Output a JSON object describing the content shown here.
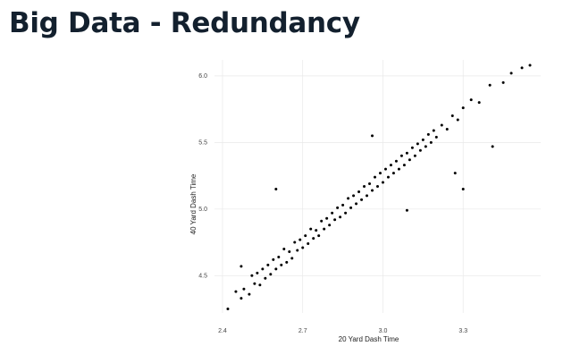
{
  "header": {
    "title": "Big Data - Redundancy"
  },
  "chart_data": {
    "type": "scatter",
    "x_label": "20 Yard Dash Time",
    "y_label": "40 Yard Dash Time",
    "color": "#000000",
    "grid": true,
    "xlim": [
      2.37,
      3.59
    ],
    "ylim": [
      4.22,
      6.12
    ],
    "xticks": [
      2.4,
      2.7,
      {
        "value": 3.0,
        "label": "3.0"
      },
      3.3
    ],
    "yticks": [
      4.5,
      {
        "value": 5.0,
        "label": "5.0"
      },
      5.5,
      {
        "value": 6.0,
        "label": "6.0"
      }
    ],
    "x": [
      2.42,
      2.45,
      2.47,
      2.48,
      2.5,
      2.51,
      2.52,
      2.53,
      2.54,
      2.55,
      2.56,
      2.57,
      2.58,
      2.59,
      2.6,
      2.61,
      2.62,
      2.63,
      2.64,
      2.65,
      2.66,
      2.67,
      2.68,
      2.69,
      2.7,
      2.71,
      2.72,
      2.73,
      2.74,
      2.75,
      2.76,
      2.77,
      2.78,
      2.79,
      2.8,
      2.81,
      2.82,
      2.83,
      2.84,
      2.85,
      2.86,
      2.87,
      2.88,
      2.89,
      2.9,
      2.91,
      2.92,
      2.93,
      2.94,
      2.95,
      2.96,
      2.97,
      2.98,
      2.99,
      3.0,
      3.01,
      3.02,
      3.03,
      3.04,
      3.05,
      3.06,
      3.07,
      3.08,
      3.09,
      3.1,
      3.11,
      3.12,
      3.13,
      3.14,
      3.15,
      3.16,
      3.17,
      3.18,
      3.19,
      3.2,
      3.22,
      3.24,
      3.26,
      3.28,
      3.3,
      3.33,
      3.36,
      3.4,
      3.45,
      3.48,
      3.52,
      3.55,
      2.6,
      3.3,
      3.27,
      3.41,
      2.96,
      3.09,
      2.47
    ],
    "y": [
      4.25,
      4.38,
      4.33,
      4.4,
      4.36,
      4.5,
      4.44,
      4.52,
      4.43,
      4.55,
      4.48,
      4.58,
      4.51,
      4.62,
      4.55,
      4.64,
      4.58,
      4.7,
      4.6,
      4.68,
      4.63,
      4.75,
      4.69,
      4.77,
      4.71,
      4.8,
      4.74,
      4.85,
      4.78,
      4.84,
      4.8,
      4.91,
      4.85,
      4.93,
      4.88,
      4.97,
      4.92,
      5.01,
      4.94,
      5.03,
      4.97,
      5.08,
      5.01,
      5.1,
      5.04,
      5.13,
      5.07,
      5.17,
      5.1,
      5.19,
      5.14,
      5.24,
      5.17,
      5.27,
      5.2,
      5.3,
      5.24,
      5.33,
      5.27,
      5.36,
      5.3,
      5.4,
      5.33,
      5.42,
      5.37,
      5.46,
      5.4,
      5.49,
      5.44,
      5.52,
      5.47,
      5.56,
      5.5,
      5.59,
      5.54,
      5.63,
      5.6,
      5.7,
      5.67,
      5.76,
      5.82,
      5.8,
      5.93,
      5.95,
      6.02,
      6.06,
      6.08,
      5.15,
      5.15,
      5.27,
      5.47,
      5.55,
      4.99,
      4.57
    ]
  }
}
